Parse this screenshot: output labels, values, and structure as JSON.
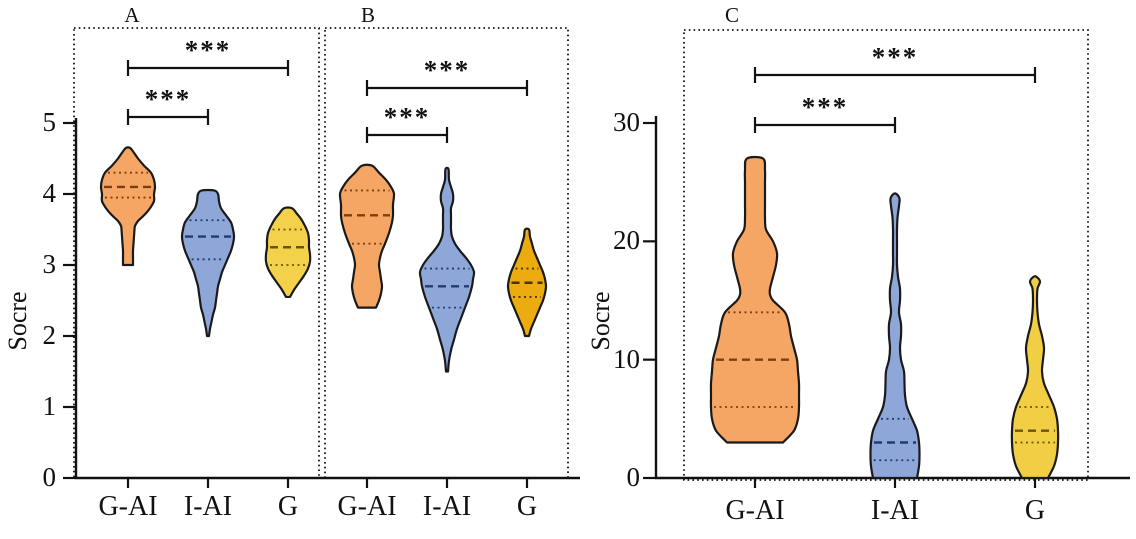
{
  "chart_data": {
    "type": "violin",
    "background": "#ffffff",
    "axis_color": "#111111",
    "y_axes": [
      {
        "id": "AB",
        "title": "Socre",
        "min": 0,
        "max": 5,
        "ticks": [
          "0",
          "1",
          "2",
          "3",
          "4",
          "5"
        ]
      },
      {
        "id": "C",
        "title": "Socre",
        "min": 0,
        "max": 30,
        "ticks": [
          "0",
          "10",
          "20",
          "30"
        ]
      }
    ],
    "panels": [
      {
        "label": "A",
        "y_axis": "AB",
        "categories": [
          "G-AI",
          "I-AI",
          "G"
        ],
        "significance": [
          {
            "from": "G-AI",
            "to": "I-AI",
            "label": "***"
          },
          {
            "from": "G-AI",
            "to": "G",
            "label": "***"
          }
        ],
        "series": [
          {
            "category": "G-AI",
            "fill": "#F5A665",
            "edge": "#1a1a1a",
            "stat_color": "#7d3f10",
            "min": 3.0,
            "max": 4.65,
            "q1": 3.95,
            "median": 4.1,
            "q3": 4.3,
            "profile": [
              [
                3.0,
                5
              ],
              [
                3.1,
                5
              ],
              [
                3.2,
                5
              ],
              [
                3.3,
                5.5
              ],
              [
                3.4,
                6
              ],
              [
                3.5,
                6.5
              ],
              [
                3.55,
                7
              ],
              [
                3.62,
                10
              ],
              [
                3.7,
                16
              ],
              [
                3.8,
                22
              ],
              [
                3.9,
                26
              ],
              [
                4.0,
                26
              ],
              [
                4.1,
                27
              ],
              [
                4.2,
                26
              ],
              [
                4.3,
                23
              ],
              [
                4.4,
                16
              ],
              [
                4.5,
                10
              ],
              [
                4.6,
                5
              ],
              [
                4.65,
                2
              ]
            ]
          },
          {
            "category": "I-AI",
            "fill": "#8FA6D9",
            "edge": "#1a1a1a",
            "stat_color": "#1e3e72",
            "min": 2.0,
            "max": 4.05,
            "q1": 3.08,
            "median": 3.4,
            "q3": 3.63,
            "profile": [
              [
                2.0,
                1
              ],
              [
                2.1,
                2
              ],
              [
                2.2,
                3.5
              ],
              [
                2.3,
                5
              ],
              [
                2.4,
                7
              ],
              [
                2.5,
                8
              ],
              [
                2.6,
                9
              ],
              [
                2.7,
                10
              ],
              [
                2.8,
                12
              ],
              [
                2.9,
                14
              ],
              [
                3.0,
                17
              ],
              [
                3.1,
                20
              ],
              [
                3.2,
                23
              ],
              [
                3.3,
                25
              ],
              [
                3.4,
                26
              ],
              [
                3.5,
                25
              ],
              [
                3.6,
                23
              ],
              [
                3.7,
                18
              ],
              [
                3.8,
                13
              ],
              [
                3.9,
                11
              ],
              [
                4.0,
                10
              ],
              [
                4.05,
                6
              ]
            ]
          },
          {
            "category": "G",
            "fill": "#F4D14A",
            "edge": "#1a1a1a",
            "stat_color": "#6a5500",
            "min": 2.55,
            "max": 3.8,
            "q1": 3.0,
            "median": 3.25,
            "q3": 3.5,
            "profile": [
              [
                2.55,
                2
              ],
              [
                2.65,
                6
              ],
              [
                2.75,
                11
              ],
              [
                2.85,
                16
              ],
              [
                2.95,
                20
              ],
              [
                3.05,
                22
              ],
              [
                3.15,
                22
              ],
              [
                3.25,
                21
              ],
              [
                3.35,
                21
              ],
              [
                3.45,
                20
              ],
              [
                3.55,
                17
              ],
              [
                3.65,
                13
              ],
              [
                3.72,
                9
              ],
              [
                3.8,
                4
              ]
            ]
          }
        ]
      },
      {
        "label": "B",
        "y_axis": "AB",
        "categories": [
          "G-AI",
          "I-AI",
          "G"
        ],
        "significance": [
          {
            "from": "G-AI",
            "to": "I-AI",
            "label": "***"
          },
          {
            "from": "G-AI",
            "to": "G",
            "label": "***"
          }
        ],
        "series": [
          {
            "category": "G-AI",
            "fill": "#F5A665",
            "edge": "#1a1a1a",
            "stat_color": "#7d3f10",
            "min": 2.4,
            "max": 4.4,
            "q1": 3.3,
            "median": 3.7,
            "q3": 4.05,
            "profile": [
              [
                2.4,
                9
              ],
              [
                2.5,
                12
              ],
              [
                2.6,
                14
              ],
              [
                2.7,
                15
              ],
              [
                2.8,
                14
              ],
              [
                2.9,
                13
              ],
              [
                3.0,
                12
              ],
              [
                3.1,
                13
              ],
              [
                3.2,
                15
              ],
              [
                3.3,
                18
              ],
              [
                3.45,
                22
              ],
              [
                3.6,
                25
              ],
              [
                3.7,
                26
              ],
              [
                3.85,
                26
              ],
              [
                4.0,
                27
              ],
              [
                4.1,
                24
              ],
              [
                4.2,
                19
              ],
              [
                4.3,
                12
              ],
              [
                4.4,
                5
              ]
            ]
          },
          {
            "category": "I-AI",
            "fill": "#8FA6D9",
            "edge": "#1a1a1a",
            "stat_color": "#1e3e72",
            "min": 1.5,
            "max": 4.35,
            "q1": 2.4,
            "median": 2.7,
            "q3": 2.95,
            "profile": [
              [
                1.5,
                1
              ],
              [
                1.65,
                2
              ],
              [
                1.8,
                4
              ],
              [
                1.95,
                7
              ],
              [
                2.1,
                10
              ],
              [
                2.25,
                14
              ],
              [
                2.4,
                18
              ],
              [
                2.55,
                22
              ],
              [
                2.7,
                25
              ],
              [
                2.8,
                26
              ],
              [
                2.9,
                27
              ],
              [
                3.0,
                24
              ],
              [
                3.1,
                19
              ],
              [
                3.2,
                13
              ],
              [
                3.3,
                8
              ],
              [
                3.4,
                5
              ],
              [
                3.5,
                4
              ],
              [
                3.6,
                4
              ],
              [
                3.7,
                4
              ],
              [
                3.8,
                4
              ],
              [
                3.9,
                6
              ],
              [
                4.0,
                6
              ],
              [
                4.1,
                4
              ],
              [
                4.2,
                2
              ],
              [
                4.35,
                1.5
              ]
            ]
          },
          {
            "category": "G",
            "fill": "#ECAB0E",
            "edge": "#1a1a1a",
            "stat_color": "#4a3500",
            "min": 2.0,
            "max": 3.5,
            "q1": 2.55,
            "median": 2.75,
            "q3": 2.95,
            "profile": [
              [
                2.0,
                2
              ],
              [
                2.1,
                4
              ],
              [
                2.2,
                7
              ],
              [
                2.3,
                10
              ],
              [
                2.4,
                13
              ],
              [
                2.5,
                16
              ],
              [
                2.6,
                18
              ],
              [
                2.7,
                19
              ],
              [
                2.8,
                18
              ],
              [
                2.9,
                16
              ],
              [
                3.0,
                13
              ],
              [
                3.1,
                10
              ],
              [
                3.2,
                7
              ],
              [
                3.3,
                5
              ],
              [
                3.4,
                3
              ],
              [
                3.5,
                2
              ]
            ]
          }
        ]
      },
      {
        "label": "C",
        "y_axis": "C",
        "categories": [
          "G-AI",
          "I-AI",
          "G"
        ],
        "significance": [
          {
            "from": "G-AI",
            "to": "I-AI",
            "label": "***"
          },
          {
            "from": "G-AI",
            "to": "G",
            "label": "***"
          }
        ],
        "series": [
          {
            "category": "G-AI",
            "fill": "#F5A665",
            "edge": "#1a1a1a",
            "stat_color": "#7d3f10",
            "min": 3,
            "max": 27,
            "q1": 6,
            "median": 10,
            "q3": 14,
            "profile": [
              [
                3,
                28
              ],
              [
                4,
                39
              ],
              [
                5,
                43
              ],
              [
                6,
                44
              ],
              [
                7,
                44
              ],
              [
                8,
                44
              ],
              [
                9,
                43
              ],
              [
                10,
                42
              ],
              [
                11,
                39
              ],
              [
                12,
                36
              ],
              [
                13,
                34
              ],
              [
                14,
                30
              ],
              [
                15,
                18
              ],
              [
                15.5,
                15
              ],
              [
                16,
                15
              ],
              [
                17,
                18
              ],
              [
                18,
                21
              ],
              [
                19,
                22
              ],
              [
                20,
                18
              ],
              [
                21,
                11
              ],
              [
                22,
                10
              ],
              [
                23,
                10
              ],
              [
                24,
                10
              ],
              [
                25,
                10
              ],
              [
                26,
                10
              ],
              [
                27,
                8
              ]
            ]
          },
          {
            "category": "I-AI",
            "fill": "#8FA6D9",
            "edge": "#1a1a1a",
            "stat_color": "#1e3e72",
            "min": 0,
            "max": 24,
            "q1": 1.5,
            "median": 3,
            "q3": 5,
            "profile": [
              [
                0,
                22
              ],
              [
                1,
                24
              ],
              [
                2,
                24.5
              ],
              [
                3,
                24
              ],
              [
                4,
                22
              ],
              [
                5,
                17
              ],
              [
                6,
                12
              ],
              [
                7,
                10
              ],
              [
                8,
                9.5
              ],
              [
                9,
                9
              ],
              [
                10,
                6
              ],
              [
                11,
                5
              ],
              [
                12,
                6
              ],
              [
                13,
                6
              ],
              [
                14,
                4
              ],
              [
                15,
                5
              ],
              [
                16,
                5
              ],
              [
                17,
                3
              ],
              [
                18,
                2
              ],
              [
                19,
                2
              ],
              [
                20,
                2
              ],
              [
                21,
                2
              ],
              [
                22,
                2.5
              ],
              [
                23,
                4
              ],
              [
                23.6,
                4.5
              ],
              [
                24,
                1.5
              ]
            ]
          },
          {
            "category": "G",
            "fill": "#F2CE45",
            "edge": "#1a1a1a",
            "stat_color": "#6a5500",
            "min": 0,
            "max": 17,
            "q1": 3,
            "median": 4,
            "q3": 6,
            "profile": [
              [
                0,
                13
              ],
              [
                1,
                19
              ],
              [
                2,
                22
              ],
              [
                3,
                23
              ],
              [
                4,
                23
              ],
              [
                5,
                22
              ],
              [
                6,
                19
              ],
              [
                7,
                14
              ],
              [
                8,
                9
              ],
              [
                9,
                7
              ],
              [
                10,
                8
              ],
              [
                11,
                9
              ],
              [
                12,
                7
              ],
              [
                13,
                4
              ],
              [
                14,
                2.5
              ],
              [
                15,
                2
              ],
              [
                16,
                2.5
              ],
              [
                16.6,
                5
              ],
              [
                17,
                1.5
              ]
            ]
          }
        ]
      }
    ]
  }
}
